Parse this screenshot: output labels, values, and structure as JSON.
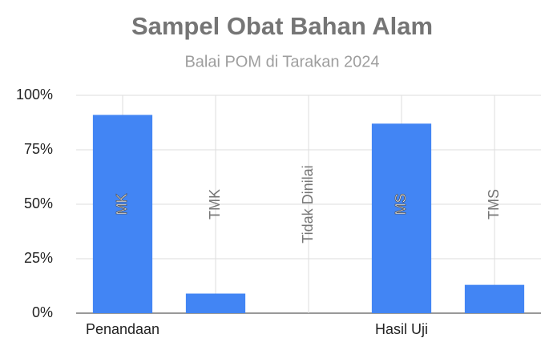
{
  "chart_data": {
    "type": "bar",
    "title": "Sampel Obat Bahan Alam",
    "subtitle": "Balai POM di Tarakan 2024",
    "categories": [
      "Penandaan",
      null,
      null,
      "Hasil Uji",
      null
    ],
    "values": [
      91,
      9,
      0,
      87,
      13
    ],
    "data_labels": [
      "MK",
      "TMK",
      "Tidak Dinilai",
      "MS",
      "TMS"
    ],
    "color": "#4285f4",
    "ylim": [
      0,
      100
    ],
    "yticks": [
      {
        "value": 0,
        "label": "0%"
      },
      {
        "value": 25,
        "label": "25%"
      },
      {
        "value": 50,
        "label": "50%"
      },
      {
        "value": 75,
        "label": "75%"
      },
      {
        "value": 100,
        "label": "100%"
      }
    ],
    "grid": true,
    "xgrid": true
  }
}
